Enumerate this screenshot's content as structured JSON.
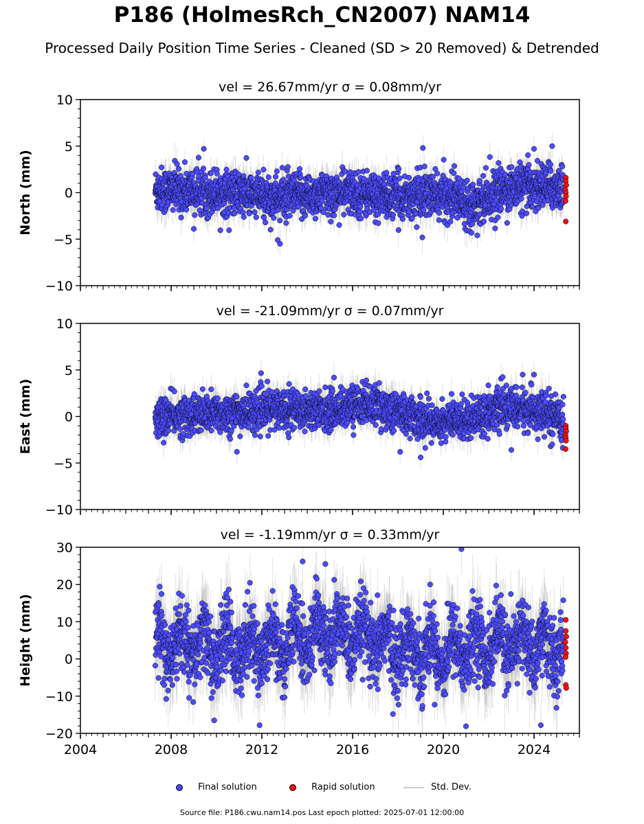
{
  "title": "P186 (HolmesRch_CN2007) NAM14",
  "subtitle": "Processed Daily Position Time Series - Cleaned (SD > 20 Removed) & Detrended",
  "footer": "Source file: P186.cwu.nam14.pos  Last epoch plotted: 2025-07-01 12:00:00",
  "legend": {
    "final_label": "Final solution",
    "rapid_label": "Rapid solution",
    "std_label": "Std. Dev."
  },
  "colors": {
    "final": "#4c4cff",
    "rapid": "#ee1111",
    "stddev": "#aaaaaa",
    "edge": "#000000"
  },
  "chart_data": [
    {
      "type": "scatter",
      "panel": "north",
      "title": "vel = 26.67mm/yr   σ = 0.08mm/yr",
      "ylabel": "North (mm)",
      "xlim": [
        2004,
        2026
      ],
      "ylim": [
        -10,
        10
      ],
      "yticks": [
        -10,
        -5,
        0,
        5,
        10
      ],
      "ytick_labels": [
        "−10",
        "−5",
        "0",
        "5",
        "10"
      ],
      "xticks": [
        2004,
        2008,
        2012,
        2016,
        2020,
        2024
      ],
      "xtick_labels": [],
      "series": [
        {
          "name": "Final solution",
          "x_range": [
            2007.3,
            2025.3
          ],
          "center": 0,
          "spread": 1.6,
          "std": 1.4,
          "wiggle": [
            [
              2007.3,
              0.3
            ],
            [
              2009,
              0.2
            ],
            [
              2011,
              -0.1
            ],
            [
              2012.5,
              -0.6
            ],
            [
              2014,
              -0.3
            ],
            [
              2016,
              0.0
            ],
            [
              2017.5,
              -0.5
            ],
            [
              2019,
              -0.3
            ],
            [
              2020.5,
              -0.4
            ],
            [
              2021.2,
              -1.2
            ],
            [
              2022,
              -0.3
            ],
            [
              2023,
              0.5
            ],
            [
              2024.5,
              0.7
            ],
            [
              2025.3,
              0.5
            ]
          ],
          "outliers": [
            [
              2019.1,
              4.8
            ],
            [
              2024.0,
              4.7
            ],
            [
              2024.8,
              5.0
            ],
            [
              2012.8,
              -5.5
            ],
            [
              2012.7,
              -5.1
            ],
            [
              2009.0,
              -3.9
            ],
            [
              2021.5,
              -4.6
            ]
          ]
        },
        {
          "name": "Rapid solution",
          "x_range": [
            2025.35,
            2025.45
          ],
          "points": [
            [
              2025.4,
              1.6
            ],
            [
              2025.4,
              1.2
            ],
            [
              2025.42,
              0.8
            ],
            [
              2025.38,
              0.3
            ],
            [
              2025.4,
              0.0
            ],
            [
              2025.41,
              -0.4
            ],
            [
              2025.39,
              -0.9
            ],
            [
              2025.4,
              -3.1
            ]
          ]
        }
      ]
    },
    {
      "type": "scatter",
      "panel": "east",
      "title": "vel = -21.09mm/yr   σ = 0.07mm/yr",
      "ylabel": "East (mm)",
      "xlim": [
        2004,
        2026
      ],
      "ylim": [
        -10,
        10
      ],
      "yticks": [
        -10,
        -5,
        0,
        5,
        10
      ],
      "ytick_labels": [
        "−10",
        "−5",
        "0",
        "5",
        "10"
      ],
      "xticks": [
        2004,
        2008,
        2012,
        2016,
        2020,
        2024
      ],
      "xtick_labels": [],
      "series": [
        {
          "name": "Final solution",
          "x_range": [
            2007.3,
            2025.3
          ],
          "center": 0,
          "spread": 1.4,
          "std": 1.3,
          "wiggle": [
            [
              2007.3,
              -0.1
            ],
            [
              2009,
              0.2
            ],
            [
              2011,
              0.4
            ],
            [
              2013,
              0.9
            ],
            [
              2015,
              0.6
            ],
            [
              2016.5,
              1.5
            ],
            [
              2018,
              0.5
            ],
            [
              2019.5,
              -0.6
            ],
            [
              2021,
              -0.3
            ],
            [
              2022.5,
              0.9
            ],
            [
              2024,
              0.7
            ],
            [
              2025,
              -0.3
            ],
            [
              2025.3,
              -0.8
            ]
          ],
          "outliers": [
            [
              2023.5,
              4.5
            ],
            [
              2024,
              4.5
            ],
            [
              2019,
              -4.4
            ],
            [
              2023,
              -3.6
            ],
            [
              2024.8,
              -3.0
            ],
            [
              2010.9,
              -3.8
            ],
            [
              2018.1,
              -3.8
            ]
          ]
        },
        {
          "name": "Rapid solution",
          "x_range": [
            2025.35,
            2025.45
          ],
          "points": [
            [
              2025.4,
              -1.0
            ],
            [
              2025.4,
              -1.3
            ],
            [
              2025.42,
              -1.6
            ],
            [
              2025.38,
              -2.0
            ],
            [
              2025.4,
              -2.3
            ],
            [
              2025.41,
              -2.6
            ],
            [
              2025.39,
              -3.5
            ]
          ]
        }
      ]
    },
    {
      "type": "scatter",
      "panel": "height",
      "title": "vel = -1.19mm/yr   σ = 0.33mm/yr",
      "ylabel": "Height (mm)",
      "xlim": [
        2004,
        2026
      ],
      "ylim": [
        -20,
        30
      ],
      "yticks": [
        -20,
        -10,
        0,
        10,
        20,
        30
      ],
      "ytick_labels": [
        "−20",
        "−10",
        "0",
        "10",
        "20",
        "30"
      ],
      "xticks": [
        2004,
        2008,
        2012,
        2016,
        2020,
        2024
      ],
      "xtick_labels": [
        "2004",
        "2008",
        "2012",
        "2016",
        "2020",
        "2024"
      ],
      "series": [
        {
          "name": "Final solution",
          "x_range": [
            2007.3,
            2025.3
          ],
          "center": 2,
          "spread": 6.5,
          "std": 7,
          "wiggle": [
            [
              2007.3,
              2
            ],
            [
              2010,
              1
            ],
            [
              2013,
              2
            ],
            [
              2015,
              5
            ],
            [
              2016.5,
              3
            ],
            [
              2018,
              1
            ],
            [
              2020,
              0
            ],
            [
              2022,
              2
            ],
            [
              2024,
              2
            ],
            [
              2025.3,
              0
            ]
          ],
          "seasonal_amp": 4,
          "outliers": [
            [
              2020.8,
              29.5
            ],
            [
              2013.8,
              26.2
            ],
            [
              2014.8,
              25.5
            ],
            [
              2011.9,
              -17.8
            ],
            [
              2021,
              -18.1
            ],
            [
              2024.3,
              -17.8
            ],
            [
              2009.9,
              -16.5
            ]
          ]
        },
        {
          "name": "Rapid solution",
          "x_range": [
            2025.35,
            2025.45
          ],
          "points": [
            [
              2025.4,
              10.5
            ],
            [
              2025.4,
              7.5
            ],
            [
              2025.42,
              6.0
            ],
            [
              2025.38,
              4.5
            ],
            [
              2025.4,
              3.0
            ],
            [
              2025.41,
              1.5
            ],
            [
              2025.39,
              0.5
            ],
            [
              2025.4,
              -7.0
            ],
            [
              2025.42,
              -7.8
            ]
          ]
        }
      ]
    }
  ]
}
